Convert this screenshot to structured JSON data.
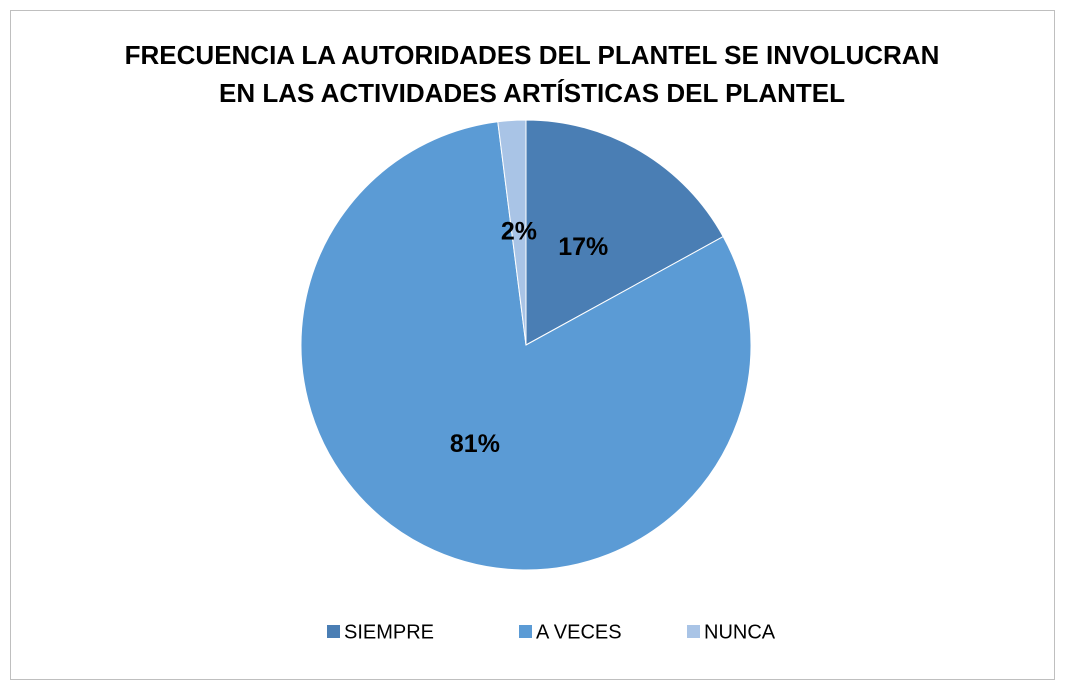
{
  "chart_data": {
    "type": "pie",
    "title": [
      "FRECUENCIA LA AUTORIDADES DEL PLANTEL SE INVOLUCRAN",
      "EN LAS ACTIVIDADES ARTÍSTICAS DEL PLANTEL"
    ],
    "categories": [
      "SIEMPRE",
      "A VECES",
      "NUNCA"
    ],
    "values": [
      17,
      81,
      2
    ],
    "value_labels": [
      "17%",
      "81%",
      "2%"
    ],
    "colors": [
      "#4a7eb4",
      "#5b9bd5",
      "#a9c4e6"
    ],
    "legend": "bottom"
  }
}
